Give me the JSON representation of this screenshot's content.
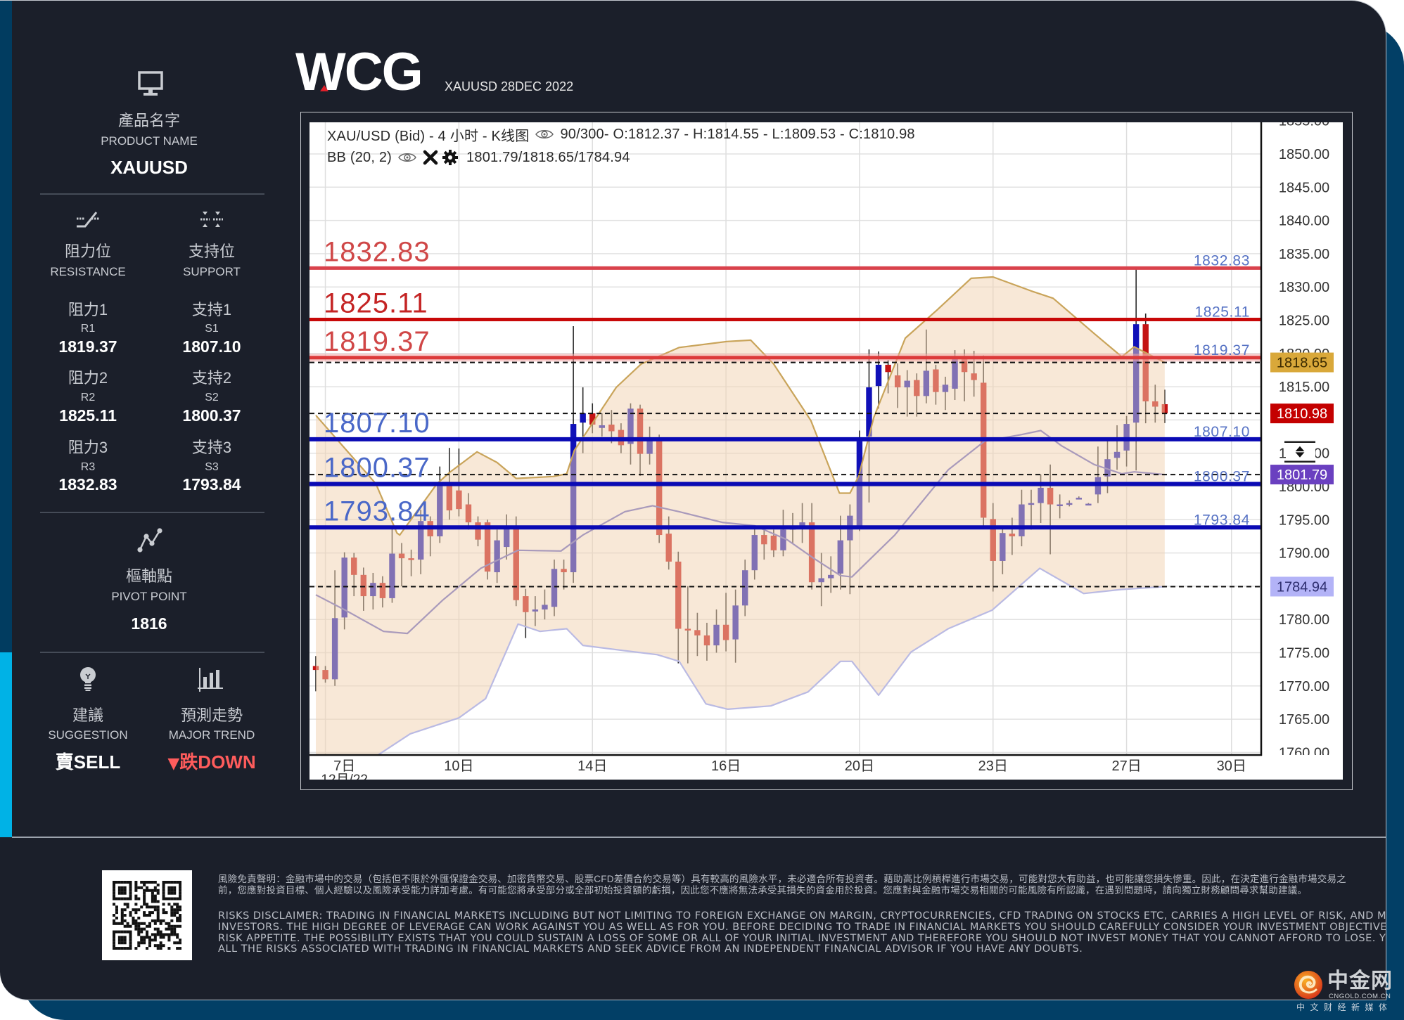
{
  "brand": {
    "logo": "WCG",
    "subtitle": "XAUUSD 28DEC 2022"
  },
  "sidebar": {
    "product": {
      "icon": "monitor-icon",
      "label_zh": "產品名字",
      "label_en": "PRODUCT NAME",
      "value": "XAUUSD"
    },
    "resistance": {
      "icon": "resistance-icon",
      "label_zh": "阻力位",
      "label_en": "RESISTANCE",
      "levels": [
        {
          "label_zh": "阻力1",
          "code": "R1",
          "value": "1819.37"
        },
        {
          "label_zh": "阻力2",
          "code": "R2",
          "value": "1825.11"
        },
        {
          "label_zh": "阻力3",
          "code": "R3",
          "value": "1832.83"
        }
      ]
    },
    "support": {
      "icon": "support-icon",
      "label_zh": "支持位",
      "label_en": "SUPPORT",
      "levels": [
        {
          "label_zh": "支持1",
          "code": "S1",
          "value": "1807.10"
        },
        {
          "label_zh": "支持2",
          "code": "S2",
          "value": "1800.37"
        },
        {
          "label_zh": "支持3",
          "code": "S3",
          "value": "1793.84"
        }
      ]
    },
    "pivot": {
      "icon": "pivot-icon",
      "label_zh": "樞軸點",
      "label_en": "PIVOT POINT",
      "value": "1816"
    },
    "suggestion": {
      "icon": "lightbulb-icon",
      "label_zh": "建議",
      "label_en": "SUGGESTION",
      "value": "賣SELL"
    },
    "trend": {
      "icon": "bar-chart-icon",
      "label_zh": "預測走勢",
      "label_en": "MAJOR TREND",
      "arrow": "▼",
      "value": "跌DOWN",
      "color": "#ff5c5c"
    }
  },
  "chart_panel": {
    "header": {
      "symbol": "XAU/USD (Bid) - 4 小时 - K线图",
      "bars": "90/300",
      "ohlc": " - O:1812.37 - H:1814.55 - L:1809.53 - C:1810.98"
    },
    "indicator": {
      "name": "BB (20, 2)",
      "values": "1801.79/1818.65/1784.94"
    },
    "y_axis": {
      "labels": [
        "1855.00",
        "1850.00",
        "1845.00",
        "1840.00",
        "1835.00",
        "1830.00",
        "1825.00",
        "1820.00",
        "1815.00",
        "1805.00",
        "1800.00",
        "1795.00",
        "1790.00",
        "1780.00",
        "1775.00",
        "1770.00",
        "1765.00",
        "1760.00"
      ]
    },
    "x_axis": {
      "ticks": [
        {
          "bar": 3,
          "grid_bar": 1,
          "label": "7日"
        },
        {
          "bar": 15,
          "label": "10日"
        },
        {
          "bar": 29,
          "label": "14日"
        },
        {
          "bar": 43,
          "label": "16日"
        },
        {
          "bar": 57,
          "label": "20日"
        },
        {
          "bar": 71,
          "label": "23日"
        },
        {
          "bar": 85,
          "label": "27日"
        },
        {
          "bar": 96,
          "label": "30日"
        }
      ],
      "sublabel": {
        "bar": 3,
        "label": "12月/22"
      }
    },
    "price_tags": [
      {
        "name": "bb-upper",
        "value": "1818.65",
        "bg": "#d9a83a",
        "fg": "#3b2a00"
      },
      {
        "name": "last-close",
        "value": "1810.98",
        "bg": "#c40000",
        "fg": "#ffffff"
      },
      {
        "name": "bb-middle",
        "value": "1801.79",
        "bg": "#6a40c0",
        "fg": "#ffffff"
      },
      {
        "name": "bb-lower",
        "value": "1784.94",
        "bg": "#b3b3f7",
        "fg": "#2d2d6e"
      }
    ],
    "axis_handle": {
      "icon": "drag-handle-icon",
      "at": "1805.00"
    }
  },
  "chart_data": {
    "type": "candlestick",
    "title": "XAU/USD (Bid) - 4 小时 - K线图",
    "xlabel": "",
    "ylabel": "",
    "ylim": [
      1760,
      1855
    ],
    "grid": true,
    "bars_shown": "90/300",
    "x_tick_labels": [
      "7日",
      "10日",
      "14日",
      "16日",
      "20日",
      "23日",
      "27日",
      "30日"
    ],
    "last_bar": {
      "open": 1812.37,
      "high": 1814.55,
      "low": 1809.53,
      "close": 1810.98
    },
    "colors": {
      "bull": "#1010b8",
      "bear": "#c41414",
      "band_fill": "#f2d2b0",
      "band_upper": "#c9a45a",
      "band_middle": "#a99abb",
      "band_lower": "#babae3"
    },
    "ohlc_fields": [
      "open",
      "high",
      "low",
      "close"
    ],
    "ohlc": [
      [
        1773.0,
        1774.5,
        1769.2,
        1772.4
      ],
      [
        1772.4,
        1773.0,
        1770.5,
        1771.0
      ],
      [
        1771.0,
        1787.4,
        1770.0,
        1780.2
      ],
      [
        1780.3,
        1790.1,
        1778.5,
        1789.3
      ],
      [
        1789.3,
        1790.0,
        1783.5,
        1786.7
      ],
      [
        1786.7,
        1787.8,
        1781.3,
        1783.5
      ],
      [
        1783.5,
        1787.0,
        1781.5,
        1785.5
      ],
      [
        1785.5,
        1786.5,
        1781.8,
        1783.2
      ],
      [
        1783.2,
        1793.8,
        1782.5,
        1789.9
      ],
      [
        1789.9,
        1791.5,
        1785.0,
        1789.2
      ],
      [
        1789.2,
        1790.5,
        1786.5,
        1789.0
      ],
      [
        1789.0,
        1796.5,
        1786.8,
        1794.8
      ],
      [
        1794.8,
        1795.5,
        1789.5,
        1792.5
      ],
      [
        1792.5,
        1803.0,
        1791.5,
        1800.6
      ],
      [
        1800.6,
        1805.8,
        1795.0,
        1796.4
      ],
      [
        1799.4,
        1805.7,
        1795.5,
        1796.6
      ],
      [
        1797.3,
        1799.0,
        1793.5,
        1794.6
      ],
      [
        1794.6,
        1795.5,
        1791.0,
        1792.0
      ],
      [
        1794.6,
        1795.0,
        1786.0,
        1787.2
      ],
      [
        1787.1,
        1793.5,
        1785.5,
        1791.9
      ],
      [
        1790.9,
        1795.8,
        1789.0,
        1794.0
      ],
      [
        1794.0,
        1795.5,
        1782.0,
        1782.9
      ],
      [
        1783.5,
        1784.6,
        1777.2,
        1781.1
      ],
      [
        1781.2,
        1783.5,
        1779.0,
        1781.5
      ],
      [
        1781.5,
        1784.5,
        1780.0,
        1782.2
      ],
      [
        1781.9,
        1789.0,
        1780.5,
        1787.6
      ],
      [
        1787.6,
        1789.0,
        1784.5,
        1787.1
      ],
      [
        1787.1,
        1824.1,
        1785.5,
        1809.4
      ],
      [
        1809.6,
        1814.9,
        1805.0,
        1811.0
      ],
      [
        1811.0,
        1812.5,
        1808.0,
        1809.3
      ],
      [
        1808.8,
        1811.0,
        1807.5,
        1809.2
      ],
      [
        1809.3,
        1811.5,
        1806.5,
        1808.3
      ],
      [
        1808.5,
        1809.5,
        1805.0,
        1806.2
      ],
      [
        1806.4,
        1812.5,
        1803.3,
        1811.7
      ],
      [
        1811.7,
        1812.3,
        1801.6,
        1804.9
      ],
      [
        1804.9,
        1809.0,
        1803.3,
        1807.3
      ],
      [
        1807.3,
        1807.8,
        1791.5,
        1792.7
      ],
      [
        1792.9,
        1795.5,
        1787.5,
        1788.7
      ],
      [
        1788.7,
        1790.2,
        1773.4,
        1778.6
      ],
      [
        1778.6,
        1785.0,
        1773.4,
        1778.4
      ],
      [
        1778.4,
        1781.0,
        1774.5,
        1777.6
      ],
      [
        1777.6,
        1779.5,
        1773.8,
        1776.1
      ],
      [
        1776.1,
        1781.5,
        1775.0,
        1779.2
      ],
      [
        1779.2,
        1784.0,
        1775.2,
        1776.9
      ],
      [
        1777.0,
        1784.5,
        1773.5,
        1782.1
      ],
      [
        1782.1,
        1789.0,
        1780.5,
        1787.4
      ],
      [
        1787.4,
        1794.0,
        1786.0,
        1792.7
      ],
      [
        1792.7,
        1794.0,
        1789.0,
        1791.3
      ],
      [
        1792.6,
        1793.5,
        1789.4,
        1790.4
      ],
      [
        1790.4,
        1796.5,
        1789.5,
        1793.5
      ],
      [
        1793.5,
        1796.0,
        1791.5,
        1793.9
      ],
      [
        1793.7,
        1797.5,
        1791.5,
        1794.6
      ],
      [
        1794.6,
        1797.5,
        1784.5,
        1785.6
      ],
      [
        1785.6,
        1790.0,
        1782.0,
        1786.2
      ],
      [
        1786.2,
        1789.5,
        1784.0,
        1786.7
      ],
      [
        1786.9,
        1795.6,
        1784.5,
        1791.9
      ],
      [
        1791.9,
        1797.3,
        1783.8,
        1795.6
      ],
      [
        1793.8,
        1808.4,
        1793.3,
        1806.8
      ],
      [
        1807.5,
        1820.6,
        1797.6,
        1814.9
      ],
      [
        1815.1,
        1820.3,
        1811.7,
        1818.3
      ],
      [
        1818.3,
        1819.0,
        1814.0,
        1817.2
      ],
      [
        1816.7,
        1818.5,
        1811.8,
        1814.9
      ],
      [
        1814.9,
        1817.5,
        1810.5,
        1815.9
      ],
      [
        1816.0,
        1817.0,
        1810.5,
        1813.6
      ],
      [
        1813.6,
        1823.6,
        1812.5,
        1817.4
      ],
      [
        1817.6,
        1818.3,
        1812.3,
        1814.2
      ],
      [
        1814.2,
        1816.5,
        1811.5,
        1815.3
      ],
      [
        1814.7,
        1820.5,
        1813.0,
        1819.3
      ],
      [
        1819.3,
        1820.6,
        1812.8,
        1817.2
      ],
      [
        1817.0,
        1820.4,
        1813.5,
        1816.0
      ],
      [
        1815.6,
        1819.7,
        1793.8,
        1795.3
      ],
      [
        1795.1,
        1797.5,
        1784.2,
        1788.8
      ],
      [
        1788.8,
        1794.0,
        1786.8,
        1793.0
      ],
      [
        1792.9,
        1795.3,
        1789.7,
        1792.5
      ],
      [
        1792.5,
        1799.5,
        1791.0,
        1797.3
      ],
      [
        1797.3,
        1799.5,
        1793.5,
        1797.5
      ],
      [
        1797.5,
        1801.8,
        1794.5,
        1799.8
      ],
      [
        1799.8,
        1803.3,
        1789.8,
        1797.3
      ],
      [
        1797.1,
        1798.8,
        1795.2,
        1797.3
      ],
      [
        1797.4,
        1797.9,
        1797.0,
        1797.5
      ],
      [
        1798.3,
        1798.5,
        1798.1,
        1798.3
      ],
      [
        1797.3,
        1797.5,
        1797.2,
        1797.4
      ],
      [
        1798.8,
        1806.0,
        1797.5,
        1801.4
      ],
      [
        1801.5,
        1807.2,
        1799.0,
        1804.1
      ],
      [
        1804.3,
        1809.2,
        1802.5,
        1805.2
      ],
      [
        1805.4,
        1810.6,
        1803.0,
        1809.4
      ],
      [
        1809.6,
        1832.9,
        1802.4,
        1824.4
      ],
      [
        1824.4,
        1826.0,
        1809.5,
        1812.8
      ],
      [
        1812.8,
        1815.3,
        1809.6,
        1812.0
      ],
      [
        1812.37,
        1814.55,
        1809.53,
        1810.98
      ]
    ],
    "bollinger": {
      "period": 20,
      "stddev": 2,
      "last": {
        "middle": 1801.79,
        "upper": 1818.65,
        "lower": 1784.94
      },
      "upper": [
        [
          0,
          1810.7
        ],
        [
          6.3,
          1800.4
        ],
        [
          8.5,
          1793.0
        ],
        [
          8.8,
          1792.7
        ],
        [
          12.7,
          1800.4
        ],
        [
          14.1,
          1802.2
        ],
        [
          16.9,
          1805.2
        ],
        [
          19.0,
          1803.6
        ],
        [
          21.0,
          1801.2
        ],
        [
          24.9,
          1801.5
        ],
        [
          26.3,
          1801.9
        ],
        [
          27.1,
          1805.4
        ],
        [
          31.5,
          1814.9
        ],
        [
          34.1,
          1818.4
        ],
        [
          38.1,
          1820.9
        ],
        [
          43.1,
          1821.8
        ],
        [
          45.6,
          1822.0
        ],
        [
          48.0,
          1818.4
        ],
        [
          51.9,
          1809.9
        ],
        [
          54.9,
          1799.0
        ],
        [
          56.0,
          1799.0
        ],
        [
          56.9,
          1801.5
        ],
        [
          58.5,
          1810.4
        ],
        [
          61.8,
          1822.3
        ],
        [
          65.1,
          1826.5
        ],
        [
          68.7,
          1831.3
        ],
        [
          71.0,
          1831.5
        ],
        [
          75.0,
          1829.4
        ],
        [
          77.3,
          1828.3
        ],
        [
          81.6,
          1823.0
        ],
        [
          84.5,
          1819.5
        ],
        [
          85.8,
          1821.0
        ],
        [
          89,
          1818.65
        ]
      ],
      "middle": [
        [
          0,
          1783.7
        ],
        [
          3.1,
          1781.4
        ],
        [
          7.1,
          1778.2
        ],
        [
          9.6,
          1777.9
        ],
        [
          13.3,
          1782.9
        ],
        [
          17.3,
          1787.7
        ],
        [
          21.2,
          1790.4
        ],
        [
          25.7,
          1790.3
        ],
        [
          28.0,
          1792.7
        ],
        [
          32.4,
          1796.2
        ],
        [
          35.3,
          1797.1
        ],
        [
          38.1,
          1796.2
        ],
        [
          42.6,
          1794.6
        ],
        [
          46.0,
          1794.1
        ],
        [
          49.4,
          1792.0
        ],
        [
          52.2,
          1789.2
        ],
        [
          55.0,
          1786.6
        ],
        [
          56.2,
          1786.4
        ],
        [
          60.7,
          1792.7
        ],
        [
          66.3,
          1802.5
        ],
        [
          70.1,
          1806.8
        ],
        [
          74.0,
          1807.8
        ],
        [
          76.0,
          1808.4
        ],
        [
          78.2,
          1806.1
        ],
        [
          81.6,
          1803.3
        ],
        [
          84.5,
          1801.9
        ],
        [
          85.8,
          1802.2
        ],
        [
          89,
          1801.79
        ]
      ],
      "lower": [
        [
          0,
          1750.0
        ],
        [
          3.0,
          1754.0
        ],
        [
          6.5,
          1759.6
        ],
        [
          9.9,
          1762.8
        ],
        [
          15.0,
          1765.2
        ],
        [
          17.8,
          1768.1
        ],
        [
          21.2,
          1779.3
        ],
        [
          23.5,
          1778.2
        ],
        [
          26.3,
          1778.6
        ],
        [
          28.0,
          1776.1
        ],
        [
          32.4,
          1775.3
        ],
        [
          35.8,
          1774.7
        ],
        [
          38.1,
          1773.7
        ],
        [
          40.9,
          1767.3
        ],
        [
          43.2,
          1766.5
        ],
        [
          47.7,
          1767.0
        ],
        [
          51.6,
          1769.1
        ],
        [
          55.0,
          1773.7
        ],
        [
          56.2,
          1773.7
        ],
        [
          59.0,
          1768.6
        ],
        [
          62.4,
          1775.1
        ],
        [
          66.3,
          1778.6
        ],
        [
          70.9,
          1781.4
        ],
        [
          75.9,
          1787.7
        ],
        [
          80.5,
          1783.9
        ],
        [
          84.4,
          1784.5
        ],
        [
          89,
          1784.94
        ]
      ]
    },
    "levels": [
      {
        "name": "R3",
        "value": 1832.83,
        "label": "1832.83",
        "color": "#d9424c",
        "text_color": "#cf4747",
        "width": 5
      },
      {
        "name": "R2",
        "value": 1825.11,
        "label": "1825.11",
        "color": "#c80808",
        "text_color": "#c42424",
        "width": 5
      },
      {
        "name": "R1",
        "value": 1819.37,
        "label": "1819.37",
        "color": "#dc3a3a",
        "text_color": "#d04646",
        "glow": "#f4a6a6",
        "width": 5
      },
      {
        "name": "S1",
        "value": 1807.1,
        "label": "1807.10",
        "color": "#0a0ab4",
        "text_color": "#4a68c8",
        "width": 6
      },
      {
        "name": "S2",
        "value": 1800.37,
        "label": "1800.37",
        "color": "#0a0ab4",
        "text_color": "#4a68c8",
        "width": 6
      },
      {
        "name": "S3",
        "value": 1793.84,
        "label": "1793.84",
        "color": "#0a0ab4",
        "text_color": "#4a68c8",
        "width": 6
      }
    ],
    "right_label_color": "#5672c4",
    "dashed_lines": [
      1818.65,
      1810.98,
      1801.79,
      1784.94
    ]
  },
  "footer": {
    "disclaimer_zh": [
      "風險免責聲明：金融市場中的交易（包括但不限於外匯保證金交易、加密貨幣交易、股票CFD差價合約交易等）具有較高的風險水平，未必適合所有投資者。藉助高比例槓桿進行市場交易，可能對您大有助益，也可能讓您損失慘重。因此，在決定進行金融市場交易之",
      "前，您應對投資目標、個人經驗以及風險承受能力詳加考慮。有可能您將承受部分或全部初始投資額的虧損，因此您不應將無法承受其損失的資金用於投資。您應對與金融市場交易相關的可能風險有所認識，在遇到問題時，請向獨立財務顧問尋求幫助建議。"
    ],
    "disclaimer_en": [
      "RISKS DISCLAIMER: TRADING IN FINANCIAL MARKETS INCLUDING BUT NOT LIMITING TO FOREIGN EXCHANGE ON MARGIN, CRYPTOCURRENCIES, CFD TRADING ON STOCKS ETC, CARRIES A HIGH LEVEL OF RISK, AND MAY NOT BE SUITABLE FOR ALL",
      "INVESTORS. THE HIGH DEGREE OF LEVERAGE CAN WORK AGAINST YOU AS WELL AS FOR YOU. BEFORE DECIDING TO TRADE IN FINANCIAL MARKETS YOU SHOULD CAREFULLY CONSIDER YOUR INVESTMENT OBJECTIVES, LEVEL OF EXPERIENCE, AND",
      "RISK APPETITE. THE POSSIBILITY EXISTS THAT YOU COULD SUSTAIN A LOSS OF SOME OR ALL OF YOUR INITIAL INVESTMENT AND THEREFORE YOU SHOULD NOT INVEST MONEY THAT YOU CANNOT AFFORD TO LOSE. YOU SHOULD BE AWARE OF",
      "ALL THE RISKS ASSOCIATED WITH TRADING IN FINANCIAL MARKETS AND SEEK ADVICE FROM AN INDEPENDENT FINANCIAL ADVISOR IF YOU HAVE ANY DOUBTS."
    ],
    "qr_icon": "qr-code-icon",
    "watermark": {
      "name": "中金网",
      "domain": "CNGOLD.COM.CN",
      "tagline": "中文财经新媒体"
    }
  }
}
